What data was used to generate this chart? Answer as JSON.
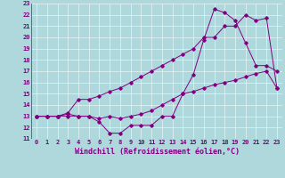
{
  "line1_x": [
    0,
    1,
    2,
    3,
    4,
    5,
    6,
    7,
    8,
    9,
    10,
    11,
    12,
    13,
    14,
    15,
    16,
    17,
    18,
    19,
    20,
    21,
    22,
    23
  ],
  "line1_y": [
    13,
    13,
    13,
    13.2,
    13,
    13,
    12.5,
    11.5,
    11.5,
    12.2,
    12.2,
    12.2,
    13,
    13,
    15,
    16.7,
    19.8,
    22.5,
    22.2,
    21.5,
    19.5,
    17.5,
    17.5,
    17
  ],
  "line2_x": [
    0,
    1,
    2,
    3,
    4,
    5,
    6,
    7,
    8,
    9,
    10,
    11,
    12,
    13,
    14,
    15,
    16,
    17,
    18,
    19,
    20,
    21,
    22,
    23
  ],
  "line2_y": [
    13,
    13,
    13,
    13.3,
    14.5,
    14.5,
    14.8,
    15.2,
    15.5,
    16,
    16.5,
    17,
    17.5,
    18,
    18.5,
    19,
    20,
    20,
    21,
    21,
    22,
    21.5,
    21.7,
    15.5
  ],
  "line3_x": [
    0,
    1,
    2,
    3,
    4,
    5,
    6,
    7,
    8,
    9,
    10,
    11,
    12,
    13,
    14,
    15,
    16,
    17,
    18,
    19,
    20,
    21,
    22,
    23
  ],
  "line3_y": [
    13,
    13,
    13,
    13,
    13,
    13,
    12.8,
    13,
    12.8,
    13,
    13.2,
    13.5,
    14,
    14.5,
    15,
    15.2,
    15.5,
    15.8,
    16,
    16.2,
    16.5,
    16.8,
    17,
    15.5
  ],
  "line_color": "#800080",
  "bg_color": "#aed8dc",
  "grid_color": "#ffffff",
  "xlabel": "Windchill (Refroidissement éolien,°C)",
  "xlim": [
    -0.5,
    23.5
  ],
  "ylim": [
    11,
    23
  ],
  "xticks": [
    0,
    1,
    2,
    3,
    4,
    5,
    6,
    7,
    8,
    9,
    10,
    11,
    12,
    13,
    14,
    15,
    16,
    17,
    18,
    19,
    20,
    21,
    22,
    23
  ],
  "yticks": [
    11,
    12,
    13,
    14,
    15,
    16,
    17,
    18,
    19,
    20,
    21,
    22,
    23
  ],
  "tick_fontsize": 5,
  "xlabel_fontsize": 6
}
